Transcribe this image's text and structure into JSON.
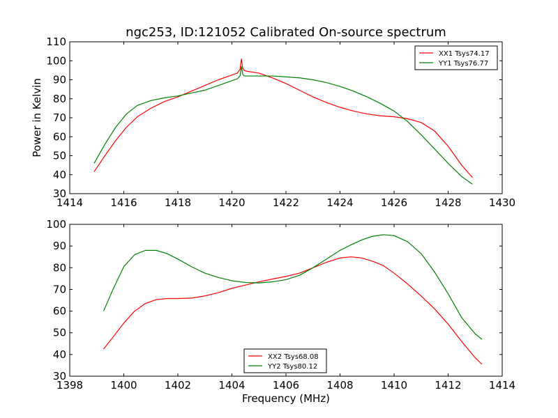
{
  "chart_data": [
    {
      "type": "line",
      "title": "ngc253, ID:121052 Calibrated On-source spectrum",
      "xlabel": "",
      "ylabel": "Power in Kelvin",
      "xlim": [
        1414,
        1430
      ],
      "ylim": [
        30,
        110
      ],
      "xticks": [
        "1414",
        "1416",
        "1418",
        "1420",
        "1422",
        "1424",
        "1426",
        "1428",
        "1430"
      ],
      "yticks": [
        "30",
        "40",
        "50",
        "60",
        "70",
        "80",
        "90",
        "100",
        "110"
      ],
      "legend": "top-right",
      "series": [
        {
          "name": "XX1 Tsys74.17",
          "color": "#ff0000",
          "x": [
            1414.9,
            1415.3,
            1415.7,
            1416.1,
            1416.5,
            1417.0,
            1417.5,
            1418.0,
            1418.5,
            1419.0,
            1419.5,
            1420.0,
            1420.2,
            1420.3,
            1420.35,
            1420.4,
            1420.45,
            1420.55,
            1421.0,
            1421.5,
            1422.0,
            1422.5,
            1423.0,
            1423.5,
            1424.0,
            1424.5,
            1425.0,
            1425.5,
            1426.0,
            1426.5,
            1427.0,
            1427.5,
            1428.0,
            1428.5,
            1428.9
          ],
          "y": [
            41.5,
            50,
            58,
            65,
            70.5,
            75,
            78.5,
            81,
            84,
            87,
            90,
            92.5,
            93.5,
            95.5,
            101,
            96,
            95,
            94.5,
            93.5,
            91,
            88,
            84.5,
            81,
            78,
            75.5,
            73.5,
            72,
            71,
            70.5,
            69.5,
            67.5,
            63,
            55,
            45,
            38.5
          ]
        },
        {
          "name": "YY1 Tsys76.77",
          "color": "#008000",
          "x": [
            1414.9,
            1415.3,
            1415.7,
            1416.1,
            1416.5,
            1417.0,
            1417.5,
            1418.0,
            1418.5,
            1419.0,
            1419.5,
            1420.0,
            1420.2,
            1420.3,
            1420.35,
            1420.4,
            1420.45,
            1420.55,
            1421.0,
            1421.5,
            1422.0,
            1422.5,
            1423.0,
            1423.5,
            1424.0,
            1424.5,
            1425.0,
            1425.5,
            1426.0,
            1426.5,
            1427.0,
            1427.5,
            1428.0,
            1428.5,
            1428.9
          ],
          "y": [
            46,
            56,
            65,
            72,
            76.5,
            79,
            80.5,
            81.5,
            83,
            84.5,
            87,
            89.5,
            90.5,
            92,
            97,
            93,
            92,
            92,
            92,
            92,
            91.5,
            91,
            90,
            88.5,
            86.5,
            84,
            81,
            77.5,
            73.5,
            68,
            61,
            53.5,
            46,
            39,
            35
          ]
        }
      ]
    },
    {
      "type": "line",
      "title": "",
      "xlabel": "Frequency (MHz)",
      "ylabel": "",
      "xlim": [
        1398,
        1414
      ],
      "ylim": [
        30,
        100
      ],
      "xticks": [
        "1398",
        "1400",
        "1402",
        "1404",
        "1406",
        "1408",
        "1410",
        "1412",
        "1414"
      ],
      "yticks": [
        "30",
        "40",
        "50",
        "60",
        "70",
        "80",
        "90",
        "100"
      ],
      "legend": "bottom-center",
      "series": [
        {
          "name": "XX2 Tsys68.08",
          "color": "#ff0000",
          "x": [
            1399.25,
            1399.6,
            1400.0,
            1400.4,
            1400.8,
            1401.2,
            1401.6,
            1402.0,
            1402.5,
            1403.0,
            1403.5,
            1404.0,
            1404.5,
            1405.0,
            1405.5,
            1406.0,
            1406.5,
            1407.0,
            1407.5,
            1408.0,
            1408.4,
            1408.8,
            1409.2,
            1409.6,
            1410.0,
            1410.5,
            1411.0,
            1411.5,
            1412.0,
            1412.5,
            1413.0,
            1413.25
          ],
          "y": [
            42.5,
            48,
            54.5,
            60,
            63.5,
            65.3,
            65.8,
            65.8,
            66,
            67,
            68.5,
            70.5,
            72,
            73.5,
            74.8,
            76,
            77.5,
            80,
            82.5,
            84.5,
            85,
            84.5,
            83,
            81,
            77.5,
            72.5,
            67,
            61,
            54,
            46,
            38.5,
            35.5
          ]
        },
        {
          "name": "YY2 Tsys80.12",
          "color": "#008000",
          "x": [
            1399.25,
            1399.6,
            1400.0,
            1400.4,
            1400.8,
            1401.2,
            1401.6,
            1402.0,
            1402.5,
            1403.0,
            1403.5,
            1404.0,
            1404.5,
            1405.0,
            1405.5,
            1406.0,
            1406.5,
            1407.0,
            1407.5,
            1408.0,
            1408.4,
            1408.8,
            1409.2,
            1409.6,
            1410.0,
            1410.5,
            1411.0,
            1411.5,
            1412.0,
            1412.5,
            1413.0,
            1413.25
          ],
          "y": [
            60,
            70,
            80.5,
            86,
            88,
            88,
            86.5,
            84,
            80.5,
            77.5,
            75.5,
            74,
            73.2,
            73,
            73.5,
            74.5,
            76.5,
            80,
            84,
            88,
            90.5,
            92.8,
            94.5,
            95.2,
            94.8,
            92,
            86.5,
            78,
            68,
            57,
            49.5,
            47
          ]
        }
      ]
    }
  ]
}
